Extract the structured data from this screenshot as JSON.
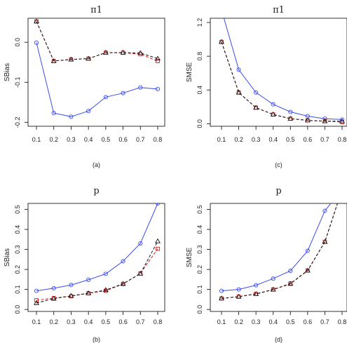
{
  "figure": {
    "colors": {
      "blue": "#3b4cf0",
      "red": "#d21f1f",
      "black": "#111111",
      "axis": "#000000"
    }
  },
  "chart_data": [
    {
      "type": "line",
      "panel_label": "(a)",
      "title": "π1",
      "xlabel": "",
      "ylabel": "SBias",
      "x": [
        0.1,
        0.2,
        0.3,
        0.4,
        0.5,
        0.6,
        0.7,
        0.8
      ],
      "xticks": [
        "0.1",
        "0.2",
        "0.3",
        "0.4",
        "0.5",
        "0.6",
        "0.7",
        "0.8"
      ],
      "ylim": [
        -0.21,
        0.06
      ],
      "yticks": [
        -0.2,
        -0.1,
        0.0
      ],
      "ytick_labels": [
        "-0.2",
        "-0.1",
        "0.0"
      ],
      "series": [
        {
          "color": "blue",
          "marker": "circle",
          "dash": "solid",
          "values": [
            -0.001,
            -0.177,
            -0.186,
            -0.172,
            -0.137,
            -0.127,
            -0.113,
            -0.117
          ]
        },
        {
          "color": "red",
          "marker": "square",
          "dash": "dashed",
          "values": [
            0.052,
            -0.047,
            -0.043,
            -0.041,
            -0.026,
            -0.026,
            -0.03,
            -0.047
          ]
        },
        {
          "color": "black",
          "marker": "triangle",
          "dash": "dashed",
          "values": [
            0.052,
            -0.047,
            -0.043,
            -0.041,
            -0.026,
            -0.026,
            -0.027,
            -0.041
          ]
        }
      ]
    },
    {
      "type": "line",
      "panel_label": "(c)",
      "title": "π1",
      "xlabel": "",
      "ylabel": "SMSE",
      "x": [
        0.1,
        0.2,
        0.3,
        0.4,
        0.5,
        0.6,
        0.7,
        0.8
      ],
      "xticks": [
        "0.1",
        "0.2",
        "0.3",
        "0.4",
        "0.5",
        "0.6",
        "0.7",
        "0.8"
      ],
      "ylim": [
        -0.03,
        1.25
      ],
      "yticks": [
        0.0,
        0.4,
        0.8,
        1.2
      ],
      "ytick_labels": [
        "0.0",
        "0.4",
        "0.8",
        "1.2"
      ],
      "series": [
        {
          "color": "blue",
          "marker": "circle",
          "dash": "solid",
          "x_start": 0.1,
          "values": [
            1.35,
            0.64,
            0.37,
            0.23,
            0.14,
            0.09,
            0.06,
            0.05
          ]
        },
        {
          "color": "red",
          "marker": "square",
          "dash": "dashed",
          "values": [
            0.97,
            0.37,
            0.19,
            0.11,
            0.06,
            0.04,
            0.03,
            0.02
          ]
        },
        {
          "color": "black",
          "marker": "triangle",
          "dash": "dashed",
          "values": [
            0.97,
            0.37,
            0.19,
            0.11,
            0.06,
            0.04,
            0.03,
            0.03
          ]
        }
      ]
    },
    {
      "type": "line",
      "panel_label": "(b)",
      "title": "p",
      "xlabel": "",
      "ylabel": "SBias",
      "x": [
        0.1,
        0.2,
        0.3,
        0.4,
        0.5,
        0.6,
        0.7,
        0.8
      ],
      "xticks": [
        "0.1",
        "0.2",
        "0.3",
        "0.4",
        "0.5",
        "0.6",
        "0.7",
        "0.8"
      ],
      "ylim": [
        -0.01,
        0.53
      ],
      "yticks": [
        0.0,
        0.1,
        0.2,
        0.3,
        0.4,
        0.5
      ],
      "ytick_labels": [
        "0.0",
        "0.1",
        "0.2",
        "0.3",
        "0.4",
        "0.5"
      ],
      "series": [
        {
          "color": "blue",
          "marker": "circle",
          "dash": "solid",
          "values": [
            0.093,
            0.106,
            0.122,
            0.148,
            0.178,
            0.241,
            0.33,
            0.53
          ]
        },
        {
          "color": "red",
          "marker": "square",
          "dash": "dashed",
          "values": [
            0.046,
            0.057,
            0.066,
            0.081,
            0.093,
            0.127,
            0.18,
            0.303
          ]
        },
        {
          "color": "black",
          "marker": "triangle",
          "dash": "dashed",
          "values": [
            0.032,
            0.054,
            0.068,
            0.081,
            0.097,
            0.128,
            0.179,
            0.341
          ]
        }
      ]
    },
    {
      "type": "line",
      "panel_label": "(d)",
      "title": "p",
      "xlabel": "",
      "ylabel": "SMSE",
      "x": [
        0.1,
        0.2,
        0.3,
        0.4,
        0.5,
        0.6,
        0.7,
        0.8
      ],
      "xticks": [
        "0.1",
        "0.2",
        "0.3",
        "0.4",
        "0.5",
        "0.6",
        "0.7",
        "0.8"
      ],
      "ylim": [
        -0.01,
        0.53
      ],
      "yticks": [
        0.0,
        0.1,
        0.2,
        0.3,
        0.4,
        0.5
      ],
      "ytick_labels": [
        "0.0",
        "0.1",
        "0.2",
        "0.3",
        "0.4",
        "0.5"
      ],
      "series": [
        {
          "color": "blue",
          "marker": "circle",
          "dash": "solid",
          "values": [
            0.093,
            0.1,
            0.121,
            0.154,
            0.193,
            0.293,
            0.493,
            0.6
          ]
        },
        {
          "color": "red",
          "marker": "square",
          "dash": "dashed",
          "values": [
            0.055,
            0.064,
            0.078,
            0.1,
            0.13,
            0.195,
            0.338,
            0.6
          ]
        },
        {
          "color": "black",
          "marker": "triangle",
          "dash": "dashed",
          "values": [
            0.055,
            0.064,
            0.077,
            0.099,
            0.128,
            0.194,
            0.338,
            0.6
          ]
        }
      ]
    }
  ]
}
